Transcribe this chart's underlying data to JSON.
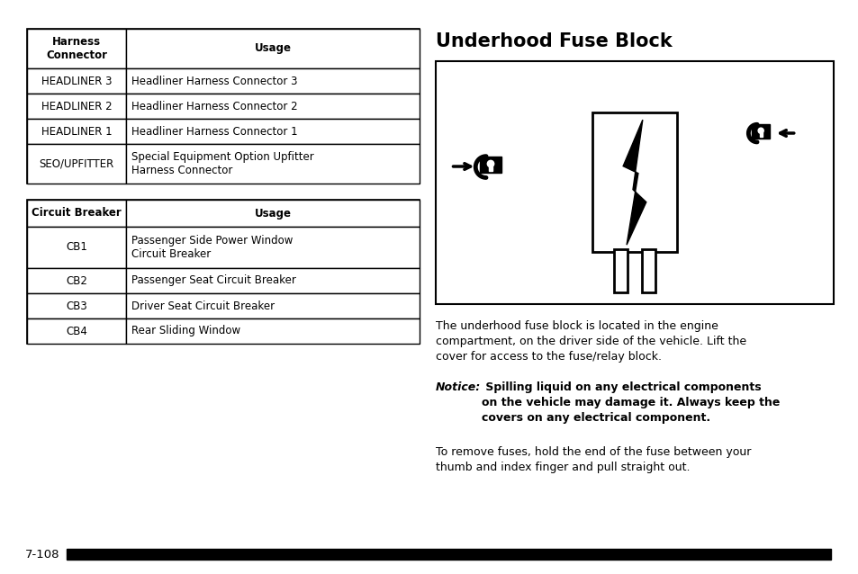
{
  "bg_color": "#ffffff",
  "page_number": "7-108",
  "table1": {
    "headers": [
      "Harness\nConnector",
      "Usage"
    ],
    "rows": [
      [
        "HEADLINER 3",
        "Headliner Harness Connector 3"
      ],
      [
        "HEADLINER 2",
        "Headliner Harness Connector 2"
      ],
      [
        "HEADLINER 1",
        "Headliner Harness Connector 1"
      ],
      [
        "SEO/UPFITTER",
        "Special Equipment Option Upfitter\nHarness Connector"
      ]
    ]
  },
  "table2": {
    "headers": [
      "Circuit Breaker",
      "Usage"
    ],
    "rows": [
      [
        "CB1",
        "Passenger Side Power Window\nCircuit Breaker"
      ],
      [
        "CB2",
        "Passenger Seat Circuit Breaker"
      ],
      [
        "CB3",
        "Driver Seat Circuit Breaker"
      ],
      [
        "CB4",
        "Rear Sliding Window"
      ]
    ]
  },
  "right_title": "Underhood Fuse Block",
  "text_block1": "The underhood fuse block is located in the engine\ncompartment, on the driver side of the vehicle. Lift the\ncover for access to the fuse/relay block.",
  "text_notice_label": "Notice:",
  "text_notice_body": " Spilling liquid on any electrical components\non the vehicle may damage it. Always keep the\ncovers on any electrical component.",
  "text_block3": "To remove fuses, hold the end of the fuse between your\nthumb and index finger and pull straight out."
}
